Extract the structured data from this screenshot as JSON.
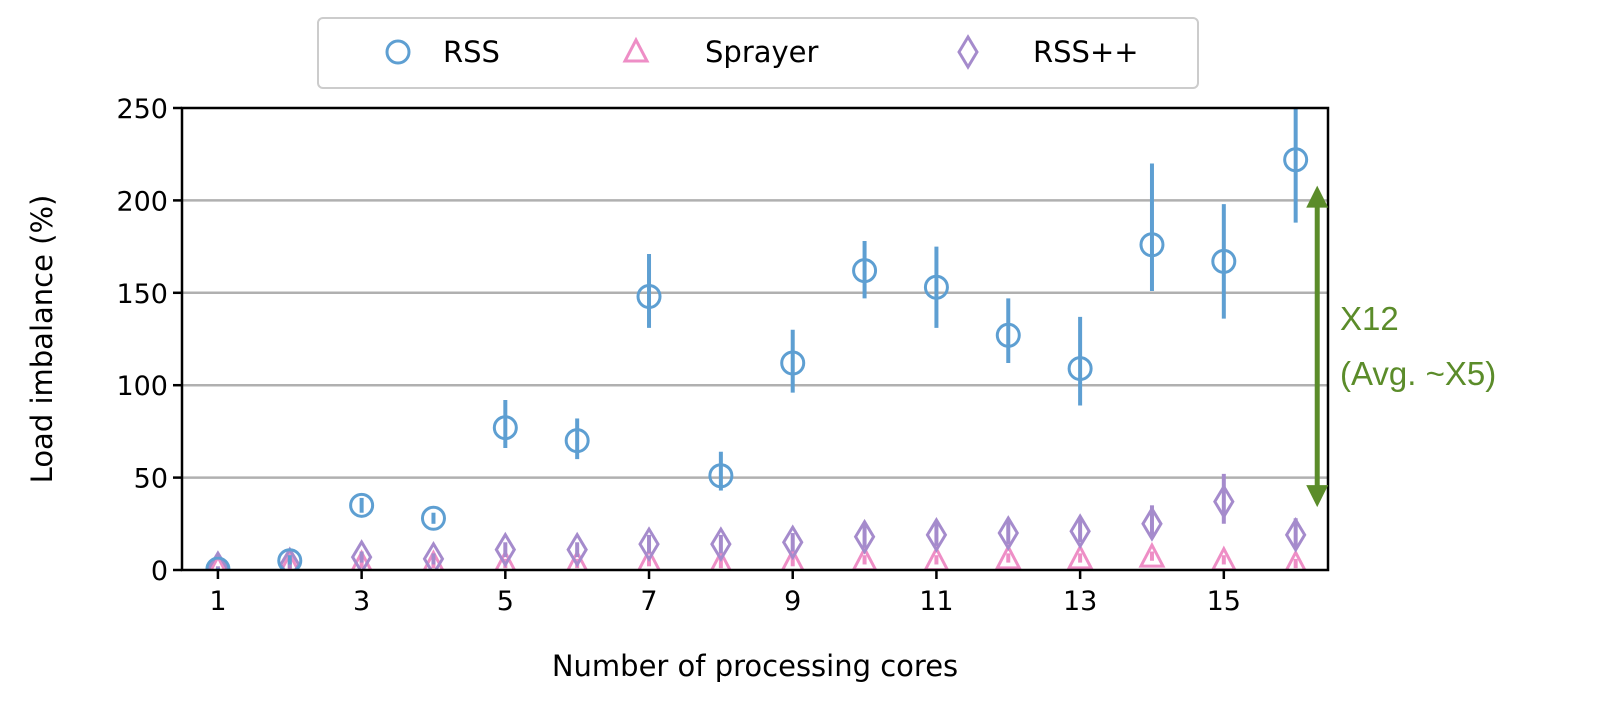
{
  "chart_data": {
    "type": "scatter",
    "xlabel": "Number of processing cores",
    "ylabel": "Load imbalance (%)",
    "xlim": [
      0.5,
      16.45
    ],
    "ylim": [
      0,
      250
    ],
    "xticks": [
      1,
      3,
      5,
      7,
      9,
      11,
      13,
      15
    ],
    "yticks": [
      0,
      50,
      100,
      150,
      200,
      250
    ],
    "grid": "horizontal",
    "legend_placement": "top-center-outside",
    "x": [
      1,
      2,
      3,
      4,
      5,
      6,
      7,
      8,
      9,
      10,
      11,
      12,
      13,
      14,
      15,
      16
    ],
    "series": [
      {
        "name": "RSS",
        "marker": "circle",
        "color": "#5e9fd2",
        "values": [
          0.5,
          5,
          35,
          28,
          77,
          70,
          148,
          51,
          112,
          162,
          153,
          127,
          109,
          176,
          167,
          222
        ],
        "err_low": [
          0,
          3,
          31,
          25,
          66,
          60,
          131,
          43,
          96,
          147,
          131,
          112,
          89,
          151,
          136,
          188
        ],
        "err_high": [
          1,
          8,
          39,
          31,
          92,
          82,
          171,
          64,
          130,
          178,
          175,
          147,
          137,
          220,
          198,
          250
        ]
      },
      {
        "name": "Sprayer",
        "marker": "triangle",
        "color": "#ee8ec6",
        "values": [
          0.5,
          2,
          3,
          3,
          3,
          3,
          4,
          3,
          4,
          5,
          5,
          6,
          6,
          7,
          5,
          3
        ],
        "err_low": [
          0,
          0,
          1,
          1,
          1,
          1,
          2,
          1,
          2,
          3,
          3,
          4,
          4,
          5,
          3,
          1
        ],
        "err_high": [
          1,
          4,
          6,
          6,
          6,
          6,
          7,
          6,
          7,
          8,
          8,
          9,
          9,
          10,
          8,
          6
        ]
      },
      {
        "name": "RSS++",
        "marker": "diamond",
        "color": "#a58bcc",
        "values": [
          1,
          3,
          7,
          6,
          11,
          11,
          14,
          14,
          15,
          18,
          19,
          20,
          21,
          25,
          37,
          19
        ],
        "err_low": [
          0,
          1,
          4,
          3,
          7,
          7,
          9,
          9,
          10,
          12,
          13,
          14,
          15,
          18,
          25,
          12
        ],
        "err_high": [
          2,
          6,
          10,
          9,
          15,
          15,
          19,
          19,
          20,
          25,
          26,
          27,
          28,
          35,
          52,
          28
        ]
      }
    ],
    "annotation": {
      "line1": "X12",
      "line2": "(Avg. ~X5)",
      "color": "#5b8c2a",
      "arrow_x": 16.3,
      "arrow_from": 34,
      "arrow_to": 208
    }
  }
}
